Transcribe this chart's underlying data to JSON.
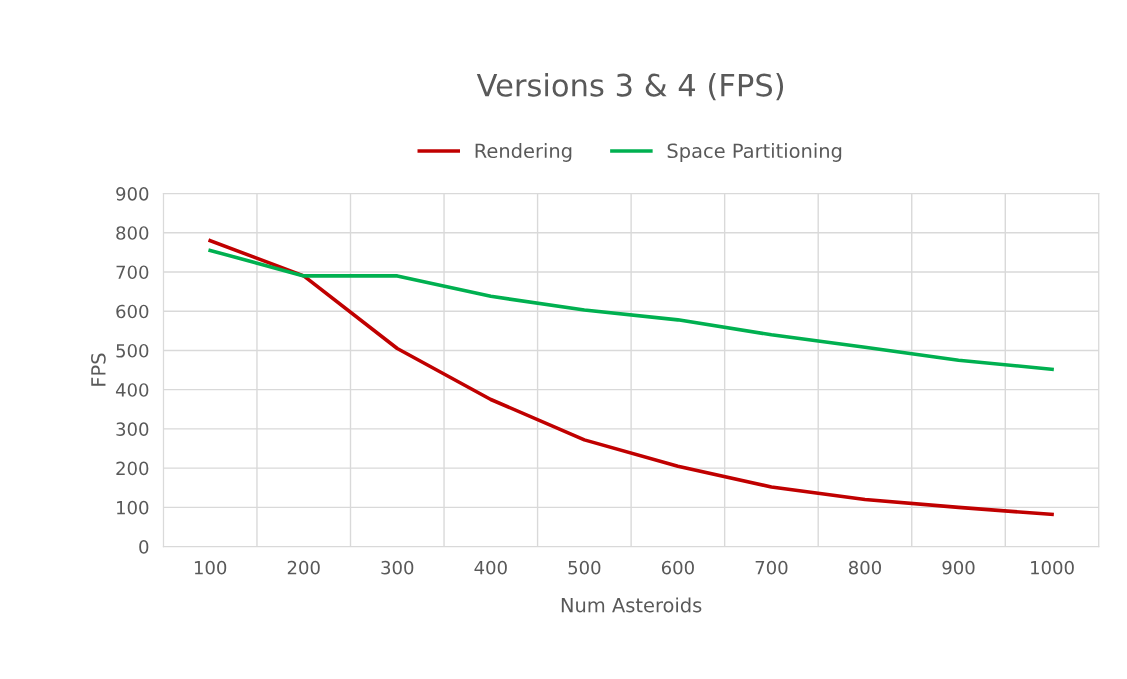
{
  "chart_data": {
    "type": "line",
    "title": "Versions 3 & 4 (FPS)",
    "xlabel": "Num Asteroids",
    "ylabel": "FPS",
    "categories": [
      "100",
      "200",
      "300",
      "400",
      "500",
      "600",
      "700",
      "800",
      "900",
      "1000"
    ],
    "series": [
      {
        "name": "Rendering",
        "color": "#c00000",
        "values": [
          780,
          690,
          505,
          375,
          272,
          205,
          152,
          120,
          100,
          82
        ]
      },
      {
        "name": "Space Partitioning",
        "color": "#00b050",
        "values": [
          755,
          690,
          690,
          638,
          603,
          578,
          540,
          508,
          475,
          452
        ]
      }
    ],
    "ylim": [
      0,
      900
    ],
    "yticks": [
      0,
      100,
      200,
      300,
      400,
      500,
      600,
      700,
      800,
      900
    ],
    "grid": true,
    "legend": "top",
    "marker": "none",
    "line_style": "solid"
  }
}
